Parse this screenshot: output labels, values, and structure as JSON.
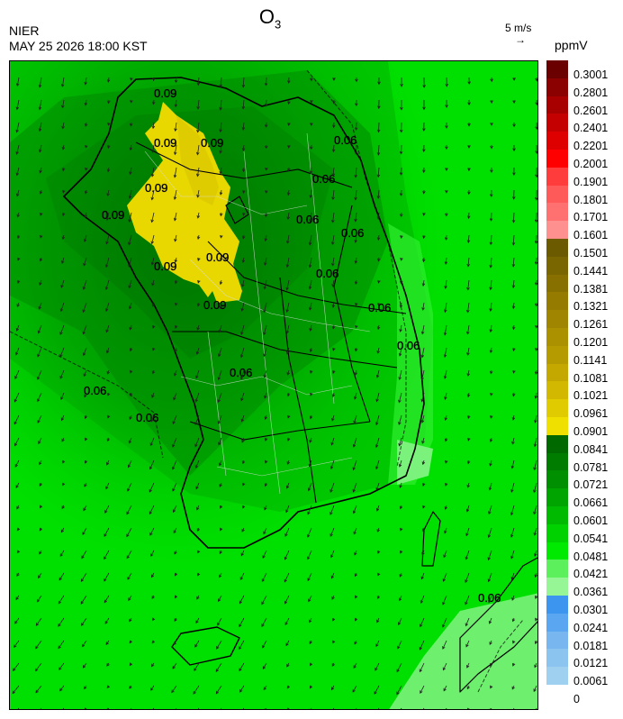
{
  "title": {
    "main": "O",
    "sub": "3"
  },
  "agency": "NIER",
  "timestamp": "MAY 25 2026 18:00 KST",
  "vector_scale": {
    "label": "5 m/s",
    "glyph": "→"
  },
  "unit": "ppmV",
  "legend": [
    {
      "label": "0.3001",
      "color": "#6b0000"
    },
    {
      "label": "0.2801",
      "color": "#8b0000"
    },
    {
      "label": "0.2601",
      "color": "#a80000"
    },
    {
      "label": "0.2401",
      "color": "#c40000"
    },
    {
      "label": "0.2201",
      "color": "#de0000"
    },
    {
      "label": "0.2001",
      "color": "#ff0000"
    },
    {
      "label": "0.1901",
      "color": "#ff3c3c"
    },
    {
      "label": "0.1801",
      "color": "#ff5a5a"
    },
    {
      "label": "0.1701",
      "color": "#ff7070"
    },
    {
      "label": "0.1601",
      "color": "#ff9090"
    },
    {
      "label": "0.1501",
      "color": "#6b5a00"
    },
    {
      "label": "0.1441",
      "color": "#7a6600"
    },
    {
      "label": "0.1381",
      "color": "#877000"
    },
    {
      "label": "0.1321",
      "color": "#957c00"
    },
    {
      "label": "0.1261",
      "color": "#a08600"
    },
    {
      "label": "0.1201",
      "color": "#ab9000"
    },
    {
      "label": "0.1141",
      "color": "#b69b00"
    },
    {
      "label": "0.1081",
      "color": "#c4a800"
    },
    {
      "label": "0.1021",
      "color": "#d2b800"
    },
    {
      "label": "0.0961",
      "color": "#e0ca00"
    },
    {
      "label": "0.0901",
      "color": "#f0e000"
    },
    {
      "label": "0.0841",
      "color": "#006a00"
    },
    {
      "label": "0.0781",
      "color": "#007c00"
    },
    {
      "label": "0.0721",
      "color": "#008f00"
    },
    {
      "label": "0.0661",
      "color": "#00a400"
    },
    {
      "label": "0.0601",
      "color": "#00ba00"
    },
    {
      "label": "0.0541",
      "color": "#00d200"
    },
    {
      "label": "0.0481",
      "color": "#00ea00"
    },
    {
      "label": "0.0421",
      "color": "#5cf05c"
    },
    {
      "label": "0.0361",
      "color": "#96f696"
    },
    {
      "label": "0.0301",
      "color": "#3c96f0"
    },
    {
      "label": "0.0241",
      "color": "#5aa6f0"
    },
    {
      "label": "0.0181",
      "color": "#78b6f0"
    },
    {
      "label": "0.0121",
      "color": "#8cc4f0"
    },
    {
      "label": "0.0061",
      "color": "#a0d0f0"
    },
    {
      "label": "0",
      "color": ""
    }
  ],
  "contour_labels": [
    "0.09",
    "0.09",
    "0.09",
    "0.09",
    "0.09",
    "0.09",
    "0.09",
    "0.09",
    "0.06",
    "0.06",
    "0.06",
    "0.06",
    "0.06",
    "0.06",
    "0.06",
    "0.06",
    "0.06",
    "0.06",
    "0.06"
  ]
}
